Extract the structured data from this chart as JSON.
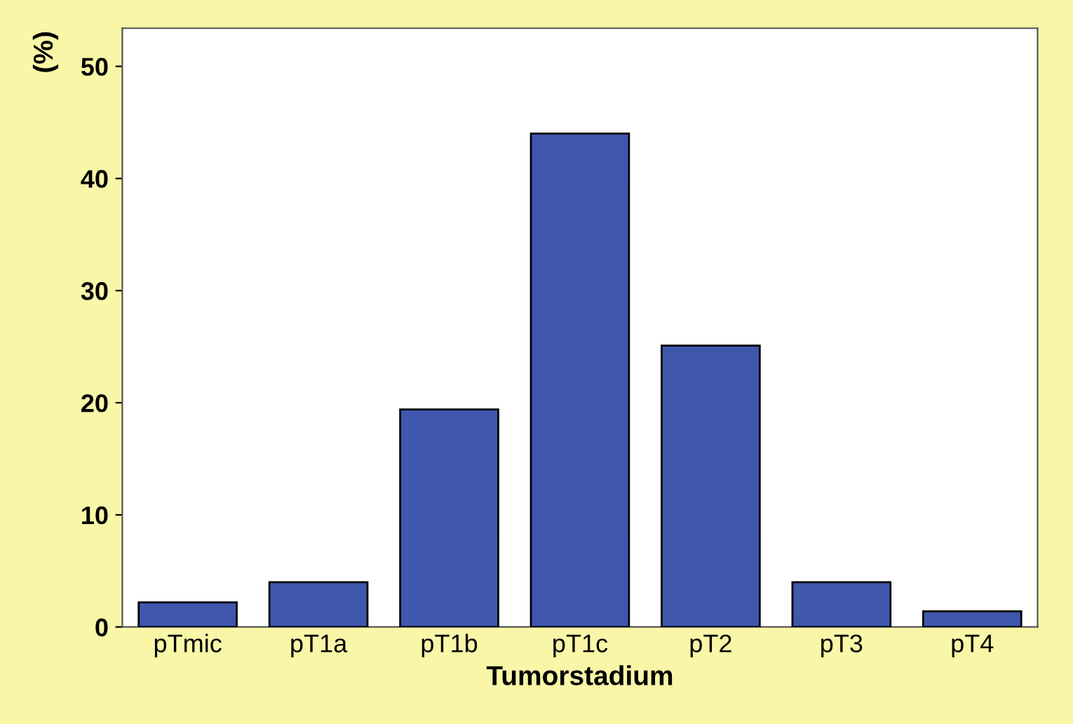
{
  "chart_data": {
    "type": "bar",
    "xlabel": "Tumorstadium",
    "ylabel": "(%)",
    "categories": [
      "pTmic",
      "pT1a",
      "pT1b",
      "pT1c",
      "pT2",
      "pT3",
      "pT4"
    ],
    "values": [
      2.2,
      4.0,
      19.4,
      44.0,
      25.1,
      4.0,
      1.4
    ],
    "color": "#3f57ad",
    "ylim": [
      0,
      53.4
    ],
    "yticks": [
      0,
      10,
      20,
      30,
      40,
      50
    ],
    "grid": false
  }
}
